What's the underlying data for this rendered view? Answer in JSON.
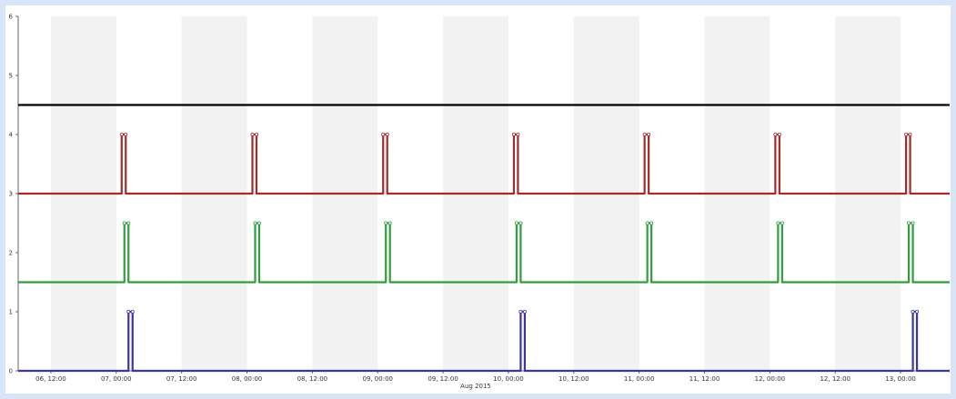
{
  "chart_data": {
    "type": "line",
    "title": "",
    "xlabel": "",
    "ylabel": "",
    "x_axis_type": "datetime",
    "xlim": [
      "2015-08-06T06:00",
      "2015-08-13T09:00"
    ],
    "ylim": [
      0,
      6
    ],
    "y_ticks": [
      0,
      1,
      2,
      3,
      4,
      5,
      6
    ],
    "x_ticks": [
      {
        "at": "2015-08-06T12:00",
        "label": "06, 12:00"
      },
      {
        "at": "2015-08-07T00:00",
        "label": "07, 00:00"
      },
      {
        "at": "2015-08-07T12:00",
        "label": "07, 12:00"
      },
      {
        "at": "2015-08-08T00:00",
        "label": "08, 00:00"
      },
      {
        "at": "2015-08-08T12:00",
        "label": "08, 12:00"
      },
      {
        "at": "2015-08-09T00:00",
        "label": "09, 00:00"
      },
      {
        "at": "2015-08-09T12:00",
        "label": "09, 12:00"
      },
      {
        "at": "2015-08-10T00:00",
        "label": "10, 00:00"
      },
      {
        "at": "2015-08-10T12:00",
        "label": "10, 12:00"
      },
      {
        "at": "2015-08-11T00:00",
        "label": "11, 00:00"
      },
      {
        "at": "2015-08-11T12:00",
        "label": "11, 12:00"
      },
      {
        "at": "2015-08-12T00:00",
        "label": "12, 00:00"
      },
      {
        "at": "2015-08-12T12:00",
        "label": "12, 12:00"
      },
      {
        "at": "2015-08-13T00:00",
        "label": "13, 00:00"
      }
    ],
    "x_sublabel": "Aug 2015",
    "grid": "alternating vertical bands",
    "legend": "none",
    "series": [
      {
        "color": "#000000",
        "points": [
          [
            "2015-08-06T06:00",
            4.5
          ],
          [
            "2015-08-13T09:00",
            4.5
          ]
        ]
      },
      {
        "color": "#a52a2a",
        "baseline": 3,
        "peak": 4,
        "pulses": [
          [
            "2015-08-07T01:00",
            "2015-08-07T01:45"
          ],
          [
            "2015-08-08T01:00",
            "2015-08-08T01:45"
          ],
          [
            "2015-08-09T01:00",
            "2015-08-09T01:45"
          ],
          [
            "2015-08-10T01:00",
            "2015-08-10T01:45"
          ],
          [
            "2015-08-11T01:00",
            "2015-08-11T01:45"
          ],
          [
            "2015-08-12T01:00",
            "2015-08-12T01:45"
          ],
          [
            "2015-08-13T01:00",
            "2015-08-13T01:45"
          ]
        ]
      },
      {
        "color": "#2e9e3e",
        "baseline": 1.5,
        "peak": 2.5,
        "pulses": [
          [
            "2015-08-07T01:30",
            "2015-08-07T02:15"
          ],
          [
            "2015-08-08T01:30",
            "2015-08-08T02:15"
          ],
          [
            "2015-08-09T01:30",
            "2015-08-09T02:15"
          ],
          [
            "2015-08-10T01:30",
            "2015-08-10T02:15"
          ],
          [
            "2015-08-11T01:30",
            "2015-08-11T02:15"
          ],
          [
            "2015-08-12T01:30",
            "2015-08-12T02:15"
          ],
          [
            "2015-08-13T01:30",
            "2015-08-13T02:15"
          ]
        ]
      },
      {
        "color": "#3a35a0",
        "baseline": 0,
        "peak": 1,
        "pulses": [
          [
            "2015-08-07T02:15",
            "2015-08-07T03:00"
          ],
          [
            "2015-08-10T02:15",
            "2015-08-10T03:00"
          ],
          [
            "2015-08-13T02:15",
            "2015-08-13T03:00"
          ]
        ]
      }
    ]
  }
}
